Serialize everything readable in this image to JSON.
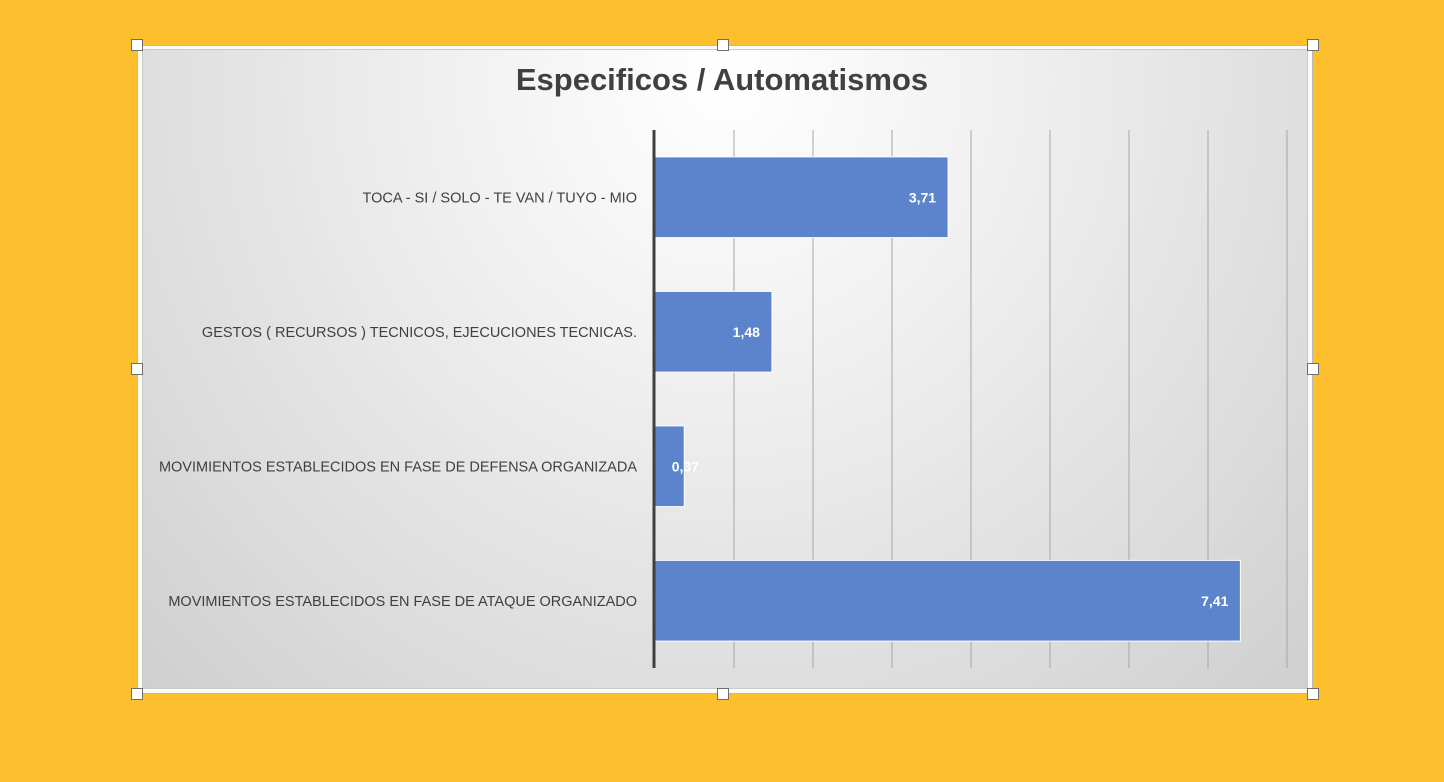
{
  "window": {
    "background_color": "#FEBF2E"
  },
  "chart_data": {
    "type": "bar",
    "orientation": "horizontal",
    "title": "Especificos / Automatismos",
    "categories": [
      "TOCA - SI / SOLO - TE VAN / TUYO - MIO",
      "GESTOS ( RECURSOS ) TECNICOS, EJECUCIONES TECNICAS.",
      "MOVIMIENTOS ESTABLECIDOS EN FASE DE DEFENSA ORGANIZADA",
      "MOVIMIENTOS ESTABLECIDOS EN FASE DE ATAQUE ORGANIZADO"
    ],
    "values": [
      3.71,
      1.48,
      0.37,
      7.41
    ],
    "value_labels": [
      "3,71",
      "1,48",
      "0,37",
      "7,41"
    ],
    "xlim": [
      0,
      8
    ],
    "grid": true,
    "bar_color": "#5B84CC",
    "label_color": "#404040",
    "value_label_color": "#ffffff"
  }
}
